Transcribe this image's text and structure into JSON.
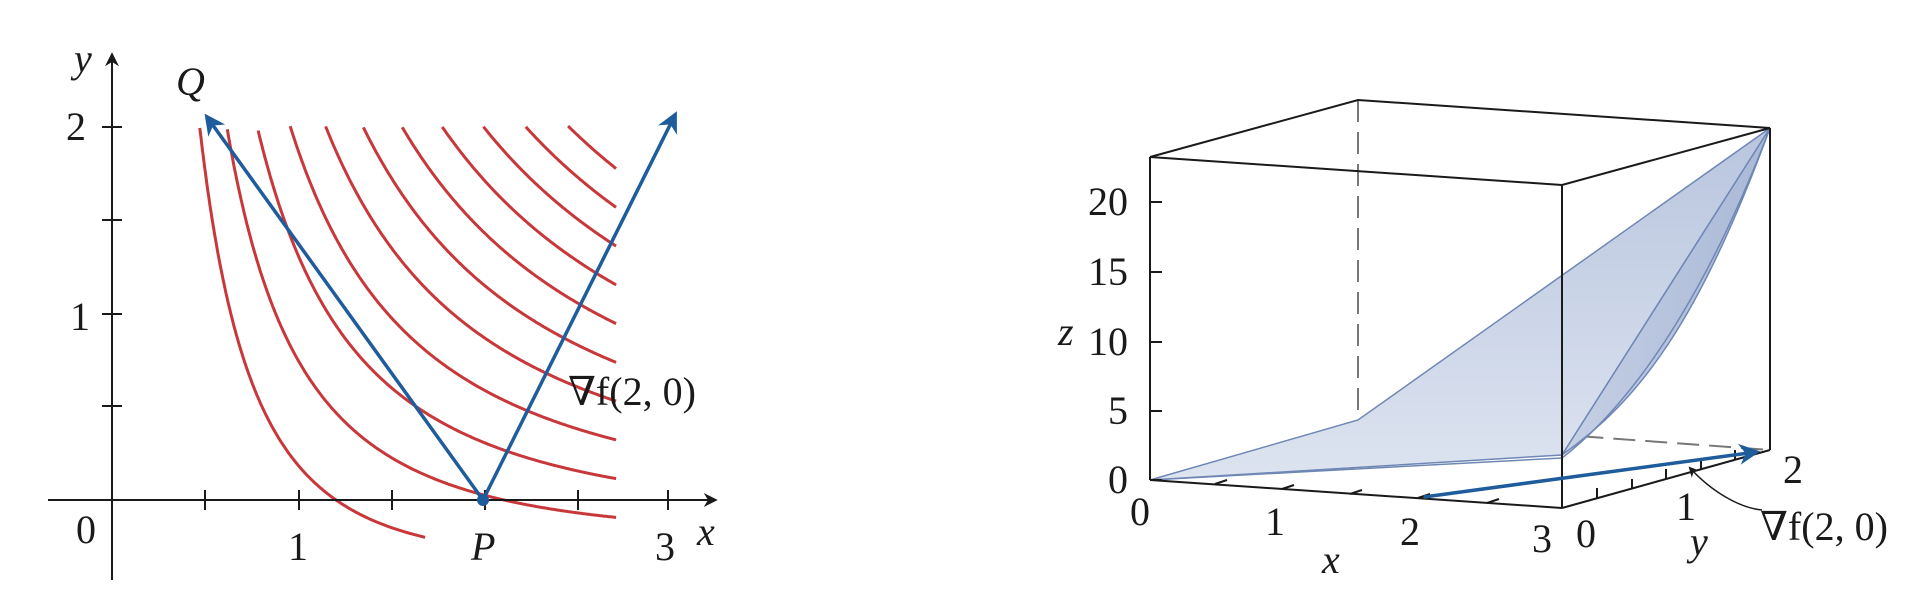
{
  "colors": {
    "level_curve": "#c8383b",
    "vector": "#1f5c9c",
    "axis": "#1a1a1a",
    "surface_top": "#b9c5df",
    "surface_bottom": "#dde4f0",
    "surface_edge": "#6f87b5",
    "dashed": "#777777"
  },
  "left_plot": {
    "x_axis_label": "x",
    "y_axis_label": "y",
    "origin_label": "0",
    "x_tick_labels": [
      "1",
      "3"
    ],
    "y_tick_labels": [
      "1",
      "2"
    ],
    "point_p_label": "P",
    "point_q_label": "Q",
    "gradient_label": "∇f(2, 0)",
    "level_curve_count": 11
  },
  "right_plot": {
    "z_axis_label": "z",
    "x_axis_label": "x",
    "y_axis_label": "y",
    "z_tick_labels": [
      "0",
      "5",
      "10",
      "15",
      "20"
    ],
    "x_tick_labels": [
      "0",
      "1",
      "2",
      "3"
    ],
    "y_tick_labels": [
      "0",
      "1",
      "2"
    ],
    "gradient_label": "∇f(2, 0)"
  }
}
